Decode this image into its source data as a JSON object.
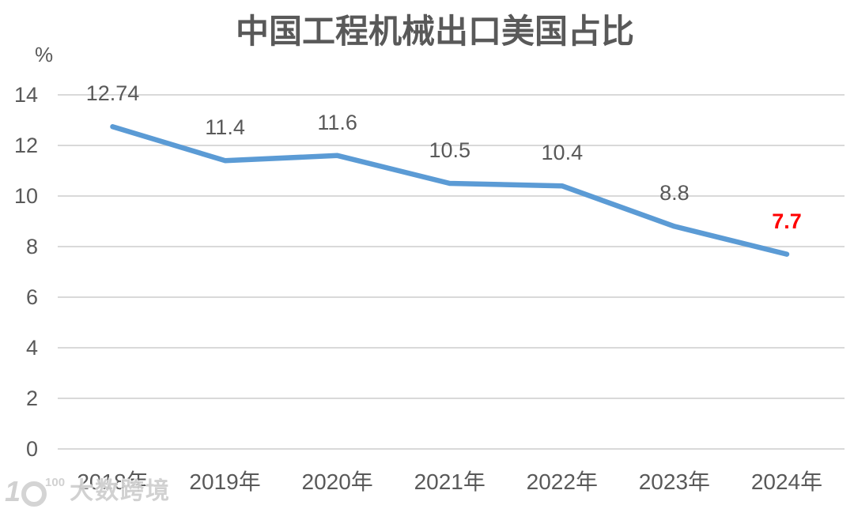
{
  "chart_data": {
    "type": "line",
    "title": "中国工程机械出口美国占比",
    "ylabel": "%",
    "xlabel": "",
    "categories": [
      "2018年",
      "2019年",
      "2020年",
      "2021年",
      "2022年",
      "2023年",
      "2024年"
    ],
    "values": [
      12.74,
      11.4,
      11.6,
      10.5,
      10.4,
      8.8,
      7.7
    ],
    "labels": [
      "12.74",
      "11.4",
      "11.6",
      "10.5",
      "10.4",
      "8.8",
      "7.7"
    ],
    "emphasized_label_index": 6,
    "yticks": [
      0,
      2,
      4,
      6,
      8,
      10,
      12,
      14
    ],
    "ylim": [
      0,
      14
    ],
    "grid": true,
    "legend_position": "none",
    "line_color": "#5B9BD5",
    "label_color": "#595959",
    "emphasis_color": "#FF0000",
    "grid_color": "#D9D9D9"
  },
  "watermark": {
    "logo_1": "1",
    "logo_sup": "100",
    "text": "大数跨境"
  }
}
